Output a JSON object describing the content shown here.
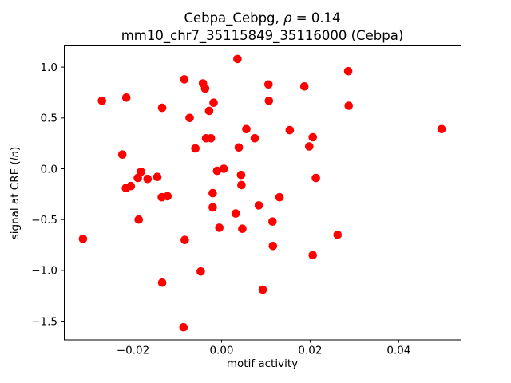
{
  "figure": {
    "title_prefix": "Cebpa_Cebpg, ",
    "title_rho": "ρ",
    "title_suffix": " = 0.14",
    "subtitle": "mm10_chr7_35115849_35116000 (Cebpa)",
    "xlabel": "motif activity",
    "ylabel_prefix": "signal at CRE (",
    "ylabel_italic": "ln",
    "ylabel_suffix": ")"
  },
  "chart_data": {
    "type": "scatter",
    "title": "Cebpa_Cebpg, ρ = 0.14",
    "subtitle": "mm10_chr7_35115849_35116000 (Cebpa)",
    "xlabel": "motif activity",
    "ylabel": "signal at CRE (ln)",
    "marker_color": "#ff0000",
    "axis_color": "#000000",
    "grid": false,
    "legend": null,
    "xlim": [
      -0.0356,
      0.054
    ],
    "ylim": [
      -1.68,
      1.213
    ],
    "x_ticks": [
      {
        "value": -0.02,
        "label": "−0.02"
      },
      {
        "value": 0.0,
        "label": "0.00"
      },
      {
        "value": 0.02,
        "label": "0.02"
      },
      {
        "value": 0.04,
        "label": "0.04"
      }
    ],
    "y_ticks": [
      {
        "value": 1.0,
        "label": "1.0"
      },
      {
        "value": 0.5,
        "label": "0.5"
      },
      {
        "value": 0.0,
        "label": "0.0"
      },
      {
        "value": -0.5,
        "label": "−0.5"
      },
      {
        "value": -1.0,
        "label": "−1.0"
      },
      {
        "value": -1.5,
        "label": "−1.5"
      }
    ],
    "points": [
      [
        -0.027,
        0.67
      ],
      [
        -0.0215,
        0.7
      ],
      [
        -0.0224,
        0.14
      ],
      [
        -0.0134,
        0.6
      ],
      [
        -0.0084,
        0.88
      ],
      [
        -0.0042,
        0.84
      ],
      [
        -0.0037,
        0.79
      ],
      [
        -0.0072,
        0.5
      ],
      [
        -0.0018,
        0.65
      ],
      [
        -0.0028,
        0.57
      ],
      [
        0.0036,
        1.08
      ],
      [
        0.0056,
        0.39
      ],
      [
        0.0075,
        0.3
      ],
      [
        -0.0035,
        0.3
      ],
      [
        -0.0024,
        0.3
      ],
      [
        -0.0059,
        0.2
      ],
      [
        0.0039,
        0.21
      ],
      [
        0.0106,
        0.83
      ],
      [
        0.0187,
        0.81
      ],
      [
        0.0107,
        0.67
      ],
      [
        0.0286,
        0.96
      ],
      [
        0.0287,
        0.62
      ],
      [
        0.0497,
        0.39
      ],
      [
        0.0154,
        0.38
      ],
      [
        0.0206,
        0.31
      ],
      [
        0.0198,
        0.22
      ],
      [
        -0.001,
        -0.02
      ],
      [
        0.0005,
        0.0
      ],
      [
        0.0044,
        -0.06
      ],
      [
        0.0045,
        -0.16
      ],
      [
        -0.0182,
        -0.03
      ],
      [
        -0.0189,
        -0.09
      ],
      [
        -0.0167,
        -0.1
      ],
      [
        -0.0145,
        -0.08
      ],
      [
        -0.0216,
        -0.19
      ],
      [
        -0.0205,
        -0.17
      ],
      [
        -0.0135,
        -0.28
      ],
      [
        -0.0122,
        -0.27
      ],
      [
        -0.002,
        -0.24
      ],
      [
        -0.002,
        -0.38
      ],
      [
        0.0032,
        -0.44
      ],
      [
        0.0084,
        -0.36
      ],
      [
        -0.0187,
        -0.5
      ],
      [
        -0.0005,
        -0.58
      ],
      [
        0.0047,
        -0.59
      ],
      [
        -0.0313,
        -0.69
      ],
      [
        -0.0083,
        -0.7
      ],
      [
        0.0213,
        -0.09
      ],
      [
        0.0131,
        -0.28
      ],
      [
        0.0115,
        -0.52
      ],
      [
        0.0116,
        -0.76
      ],
      [
        0.0262,
        -0.65
      ],
      [
        0.0206,
        -0.85
      ],
      [
        0.0093,
        -1.19
      ],
      [
        -0.0047,
        -1.01
      ],
      [
        -0.0134,
        -1.12
      ],
      [
        -0.0086,
        -1.56
      ]
    ]
  }
}
